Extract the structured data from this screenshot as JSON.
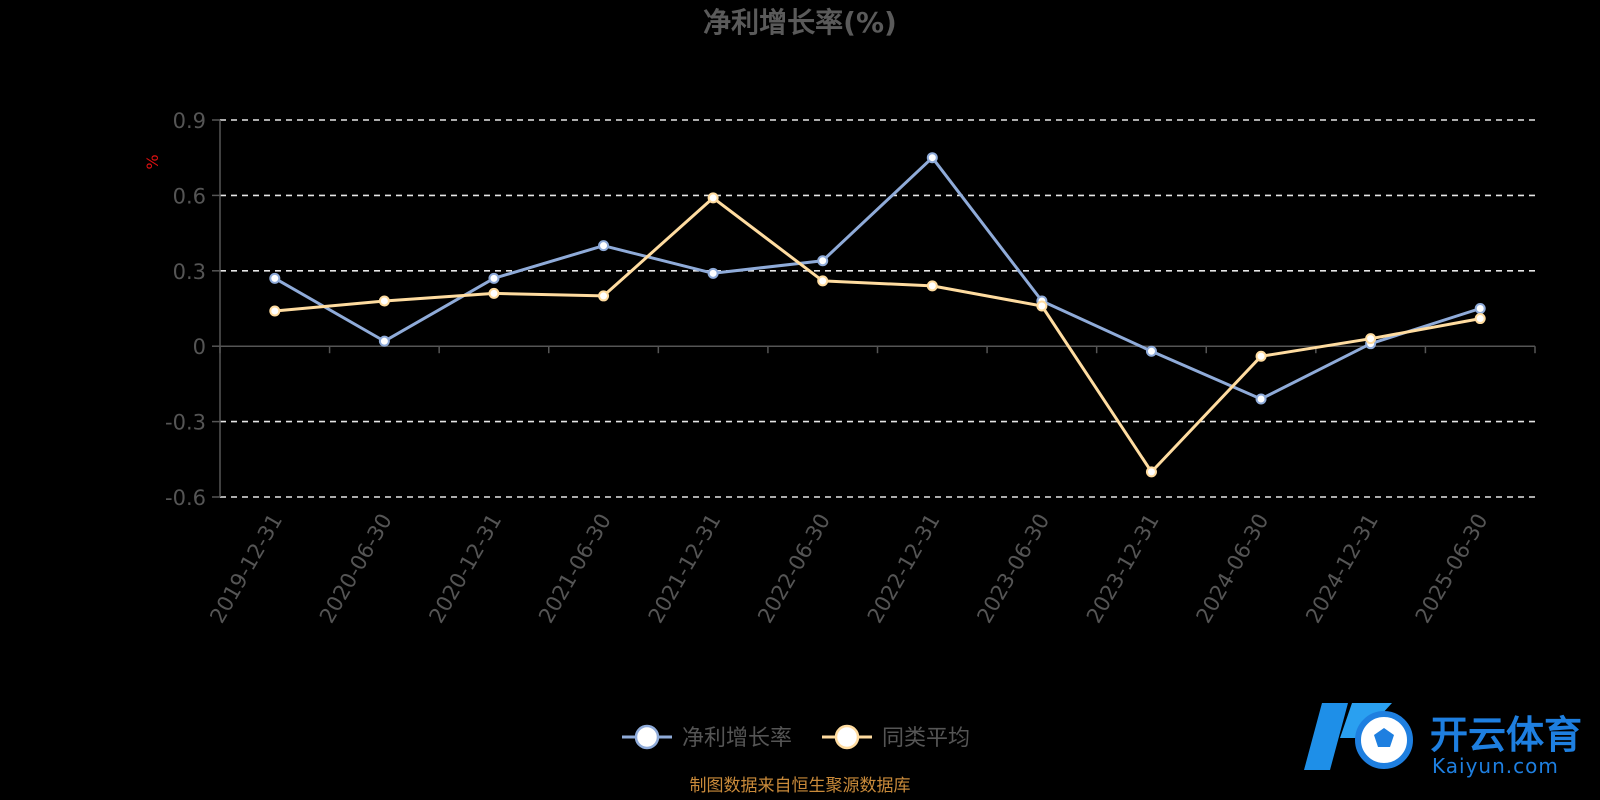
{
  "chart_data": {
    "type": "line",
    "title": "净利增长率(%)",
    "unit_label": "%",
    "categories": [
      "2019-12-31",
      "2020-06-30",
      "2020-12-31",
      "2021-06-30",
      "2021-12-31",
      "2022-06-30",
      "2022-12-31",
      "2023-06-30",
      "2023-12-31",
      "2024-06-30",
      "2024-12-31",
      "2025-06-30"
    ],
    "y_ticks": [
      -0.6,
      -0.3,
      0,
      0.3,
      0.6,
      0.9
    ],
    "y_tick_labels": [
      "-0.6",
      "-0.3",
      "0",
      "0.3",
      "0.6",
      "0.9"
    ],
    "ylim": [
      -0.6,
      0.9
    ],
    "grid": true,
    "legend_position": "bottom-center",
    "series": [
      {
        "name": "净利增长率",
        "color": "#8fabd9",
        "values": [
          0.27,
          0.02,
          0.27,
          0.4,
          0.29,
          0.34,
          0.75,
          0.18,
          -0.02,
          -0.21,
          0.01,
          0.15
        ]
      },
      {
        "name": "同类平均",
        "color": "#ffdca0",
        "values": [
          0.14,
          0.18,
          0.21,
          0.2,
          0.59,
          0.26,
          0.24,
          0.16,
          -0.5,
          -0.04,
          0.03,
          0.11
        ]
      }
    ]
  },
  "source_note": "制图数据来自恒生聚源数据库",
  "watermark": {
    "brand": "开云体育",
    "url": "Kaiyun.com",
    "logo_letter": "K"
  }
}
